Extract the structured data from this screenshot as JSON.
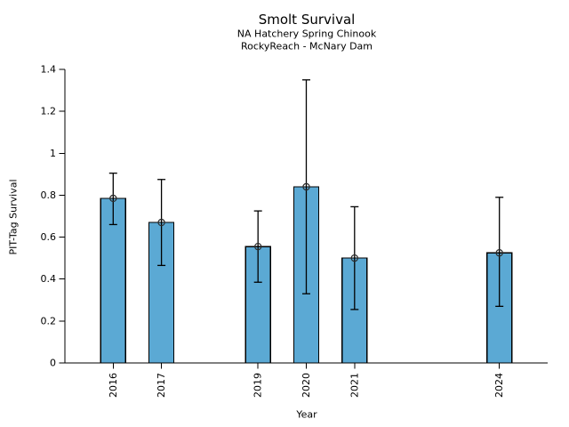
{
  "chart_data": {
    "type": "bar",
    "title": "Smolt Survival",
    "subtitle1": "NA Hatchery Spring Chinook",
    "subtitle2": "RockyReach - McNary Dam",
    "xlabel": "Year",
    "ylabel": "PIT-Tag Survival",
    "categories": [
      2016,
      2017,
      2019,
      2020,
      2021,
      2024
    ],
    "values": [
      0.785,
      0.67,
      0.555,
      0.84,
      0.5,
      0.525
    ],
    "error_low": [
      0.66,
      0.465,
      0.385,
      0.33,
      0.255,
      0.27
    ],
    "error_high": [
      0.905,
      0.875,
      0.725,
      1.35,
      0.745,
      0.79
    ],
    "ylim": [
      0,
      1.4
    ],
    "xlim": [
      2015,
      2025
    ],
    "yticks": [
      "0",
      "0.2",
      "0.4",
      "0.6",
      "0.8",
      "1",
      "1.2",
      "1.4"
    ],
    "xtick_rotation_deg": -90,
    "grid": false,
    "legend": null,
    "bar_color": "#5BA9D4",
    "bar_edge_color": "#000000",
    "error_color": "#000000",
    "marker": "open-circle",
    "marker_color": "#2b2b2b",
    "background_color": "#ffffff"
  }
}
